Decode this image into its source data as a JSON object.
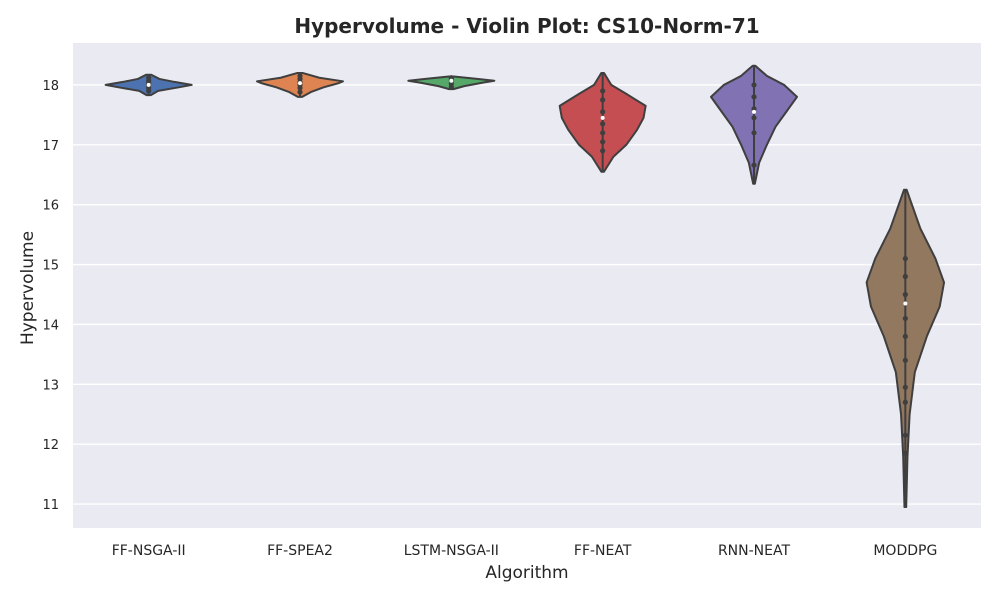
{
  "chart_data": {
    "type": "violin",
    "title": "Hypervolume - Violin Plot: CS10-Norm-71",
    "xlabel": "Algorithm",
    "ylabel": "Hypervolume",
    "ylim": [
      10.6,
      18.7
    ],
    "yticks": [
      11,
      12,
      13,
      14,
      15,
      16,
      17,
      18
    ],
    "grid": true,
    "background": "#eaeaf2",
    "categories": [
      "FF-NSGA-II",
      "FF-SPEA2",
      "LSTM-NSGA-II",
      "FF-NEAT",
      "RNN-NEAT",
      "MODDPG"
    ],
    "series": [
      {
        "category": "FF-NSGA-II",
        "color": "#4c72b0",
        "min": 17.83,
        "max": 18.17,
        "median": 18.0,
        "q1": 17.95,
        "q3": 18.08,
        "profile": [
          [
            17.83,
            0.05
          ],
          [
            17.9,
            0.22
          ],
          [
            17.96,
            0.7
          ],
          [
            18.0,
            1.0
          ],
          [
            18.05,
            0.6
          ],
          [
            18.1,
            0.25
          ],
          [
            18.17,
            0.06
          ]
        ],
        "points": [
          17.9,
          17.95,
          18.0,
          18.03,
          18.07,
          18.12
        ]
      },
      {
        "category": "FF-SPEA2",
        "color": "#dd8452",
        "min": 17.8,
        "max": 18.2,
        "median": 18.03,
        "q1": 17.95,
        "q3": 18.1,
        "profile": [
          [
            17.8,
            0.05
          ],
          [
            17.88,
            0.25
          ],
          [
            17.96,
            0.55
          ],
          [
            18.03,
            0.9
          ],
          [
            18.06,
            1.0
          ],
          [
            18.12,
            0.45
          ],
          [
            18.2,
            0.06
          ]
        ],
        "points": [
          17.88,
          17.95,
          18.0,
          18.05,
          18.1,
          18.15
        ]
      },
      {
        "category": "LSTM-NSGA-II",
        "color": "#55a868",
        "min": 17.93,
        "max": 18.14,
        "median": 18.07,
        "q1": 18.02,
        "q3": 18.1,
        "profile": [
          [
            17.93,
            0.05
          ],
          [
            17.98,
            0.3
          ],
          [
            18.04,
            0.75
          ],
          [
            18.07,
            1.0
          ],
          [
            18.1,
            0.6
          ],
          [
            18.14,
            0.06
          ]
        ],
        "points": [
          17.97,
          18.02,
          18.07,
          18.1,
          18.12
        ]
      },
      {
        "category": "FF-NEAT",
        "color": "#c44e52",
        "min": 16.55,
        "max": 18.2,
        "median": 17.45,
        "q1": 17.1,
        "q3": 17.7,
        "profile": [
          [
            16.55,
            0.03
          ],
          [
            16.8,
            0.25
          ],
          [
            17.0,
            0.55
          ],
          [
            17.25,
            0.8
          ],
          [
            17.45,
            0.95
          ],
          [
            17.65,
            1.0
          ],
          [
            17.85,
            0.55
          ],
          [
            18.0,
            0.2
          ],
          [
            18.2,
            0.03
          ]
        ],
        "points": [
          16.9,
          17.05,
          17.2,
          17.35,
          17.55,
          17.75,
          17.9
        ]
      },
      {
        "category": "RNN-NEAT",
        "color": "#8172b3",
        "min": 16.35,
        "max": 18.32,
        "median": 17.55,
        "q1": 17.25,
        "q3": 17.9,
        "profile": [
          [
            16.35,
            0.02
          ],
          [
            16.7,
            0.12
          ],
          [
            17.0,
            0.3
          ],
          [
            17.3,
            0.5
          ],
          [
            17.55,
            0.75
          ],
          [
            17.8,
            1.0
          ],
          [
            18.0,
            0.7
          ],
          [
            18.15,
            0.3
          ],
          [
            18.32,
            0.03
          ]
        ],
        "points": [
          16.66,
          17.2,
          17.45,
          17.6,
          17.8,
          18.0
        ]
      },
      {
        "category": "MODDPG",
        "color": "#937860",
        "min": 10.95,
        "max": 16.25,
        "median": 14.35,
        "q1": 13.7,
        "q3": 14.7,
        "profile": [
          [
            10.95,
            0.02
          ],
          [
            11.8,
            0.05
          ],
          [
            12.5,
            0.1
          ],
          [
            13.2,
            0.22
          ],
          [
            13.8,
            0.5
          ],
          [
            14.3,
            0.8
          ],
          [
            14.7,
            0.9
          ],
          [
            15.1,
            0.7
          ],
          [
            15.6,
            0.35
          ],
          [
            16.25,
            0.03
          ]
        ],
        "points": [
          11.85,
          12.15,
          12.7,
          12.95,
          13.4,
          13.8,
          14.1,
          14.5,
          14.8,
          15.1
        ]
      }
    ]
  }
}
